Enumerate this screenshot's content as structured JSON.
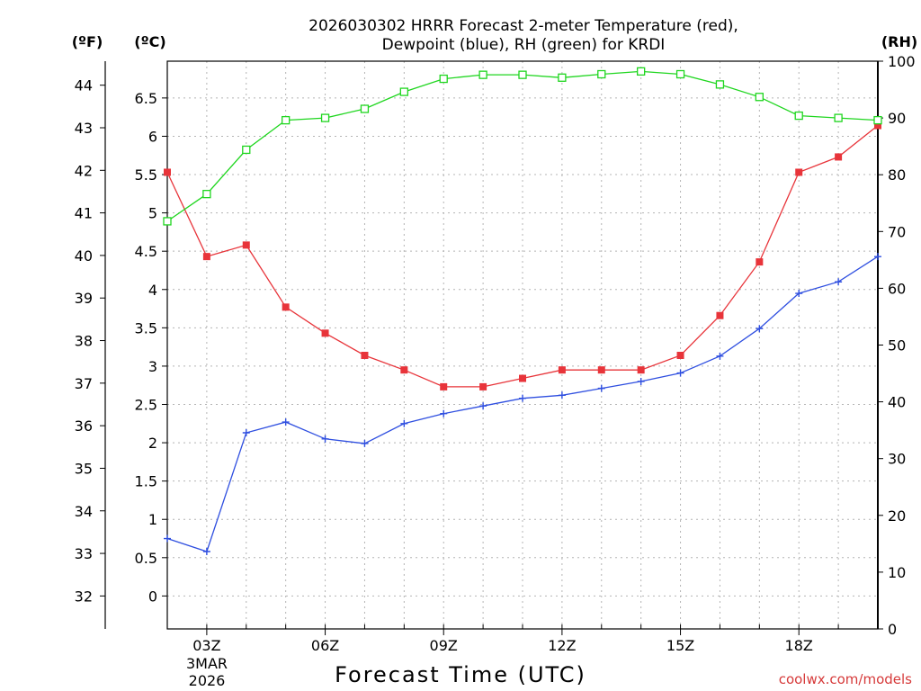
{
  "chart_data": {
    "type": "line",
    "title_line1": "2026030302 HRRR Forecast 2-meter Temperature (red),",
    "title_line2": "Dewpoint (blue), RH (green) for KRDI",
    "xlabel": "Forecast Time (UTC)",
    "credit": "coolwx.com/models",
    "unit_f": "(ºF)",
    "unit_c": "(ºC)",
    "unit_rh": "(RH)",
    "x_hours": [
      2,
      3,
      4,
      5,
      6,
      7,
      8,
      9,
      10,
      11,
      12,
      13,
      14,
      15,
      16,
      17,
      18,
      19,
      20
    ],
    "xlim": [
      2,
      20
    ],
    "x_ticks": [
      {
        "hour": 3,
        "label": "03Z"
      },
      {
        "hour": 6,
        "label": "06Z"
      },
      {
        "hour": 9,
        "label": "09Z"
      },
      {
        "hour": 12,
        "label": "12Z"
      },
      {
        "hour": 15,
        "label": "15Z"
      },
      {
        "hour": 18,
        "label": "18Z"
      }
    ],
    "date_label_line1": "3MAR",
    "date_label_line2": "2026",
    "ylim_c": [
      -0.43,
      6.98
    ],
    "y_ticks_c": [
      "0",
      "0.5",
      "1",
      "1.5",
      "2",
      "2.5",
      "3",
      "3.5",
      "4",
      "4.5",
      "5",
      "5.5",
      "6",
      "6.5"
    ],
    "y_ticks_f": [
      "32",
      "33",
      "34",
      "35",
      "36",
      "37",
      "38",
      "39",
      "40",
      "41",
      "42",
      "43",
      "44"
    ],
    "ylim_rh": [
      0,
      100
    ],
    "y_ticks_rh": [
      "0",
      "10",
      "20",
      "30",
      "40",
      "50",
      "60",
      "70",
      "80",
      "90",
      "100"
    ],
    "series": [
      {
        "name": "Temperature",
        "unit": "C",
        "color": "#e8343a",
        "marker": "filled-square",
        "values": [
          5.53,
          4.43,
          4.58,
          3.77,
          3.43,
          3.14,
          2.95,
          2.73,
          2.73,
          2.84,
          2.95,
          2.95,
          2.95,
          3.14,
          3.66,
          4.36,
          5.53,
          5.73,
          6.14
        ]
      },
      {
        "name": "Dewpoint",
        "unit": "C",
        "color": "#2f4fe0",
        "marker": "plus",
        "values": [
          0.75,
          0.58,
          2.13,
          2.27,
          2.05,
          1.99,
          2.25,
          2.38,
          2.48,
          2.58,
          2.62,
          2.71,
          2.8,
          2.91,
          3.13,
          3.49,
          3.95,
          4.1,
          4.43
        ]
      },
      {
        "name": "RH",
        "unit": "%",
        "color": "#1fd61f",
        "marker": "open-square",
        "values": [
          71.8,
          76.6,
          84.4,
          89.6,
          90.0,
          91.6,
          94.6,
          96.9,
          97.6,
          97.6,
          97.1,
          97.7,
          98.2,
          97.7,
          95.9,
          93.7,
          90.4,
          90.0,
          89.6
        ]
      }
    ]
  }
}
